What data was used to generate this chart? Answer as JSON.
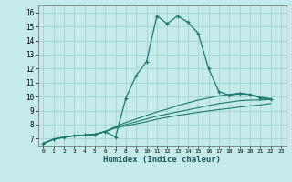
{
  "xlabel": "Humidex (Indice chaleur)",
  "background_color": "#c5eaea",
  "grid_color": "#9ecece",
  "line_color": "#1a7a6a",
  "xlim": [
    -0.5,
    23.5
  ],
  "ylim": [
    6.5,
    16.5
  ],
  "xticks": [
    0,
    1,
    2,
    3,
    4,
    5,
    6,
    7,
    8,
    9,
    10,
    11,
    12,
    13,
    14,
    15,
    16,
    17,
    18,
    19,
    20,
    21,
    22,
    23
  ],
  "yticks": [
    7,
    8,
    9,
    10,
    11,
    12,
    13,
    14,
    15,
    16
  ],
  "series_main": [
    6.65,
    6.95,
    7.1,
    7.2,
    7.25,
    7.3,
    7.5,
    7.1,
    9.9,
    11.5,
    12.5,
    15.75,
    15.2,
    15.75,
    15.3,
    14.5,
    12.0,
    10.35,
    10.1,
    10.2,
    10.15,
    9.9,
    9.8
  ],
  "series2": [
    6.65,
    6.95,
    7.1,
    7.2,
    7.25,
    7.3,
    7.5,
    7.85,
    8.15,
    8.4,
    8.65,
    8.9,
    9.1,
    9.35,
    9.55,
    9.75,
    9.9,
    10.05,
    10.15,
    10.25,
    10.15,
    9.95,
    9.85
  ],
  "series3": [
    6.65,
    6.95,
    7.1,
    7.2,
    7.25,
    7.3,
    7.5,
    7.8,
    8.0,
    8.2,
    8.4,
    8.6,
    8.75,
    8.9,
    9.05,
    9.2,
    9.35,
    9.5,
    9.6,
    9.7,
    9.75,
    9.75,
    9.8
  ],
  "series4": [
    6.65,
    6.95,
    7.1,
    7.2,
    7.25,
    7.3,
    7.5,
    7.75,
    7.9,
    8.05,
    8.2,
    8.38,
    8.52,
    8.65,
    8.76,
    8.87,
    8.97,
    9.07,
    9.15,
    9.25,
    9.33,
    9.4,
    9.5
  ]
}
